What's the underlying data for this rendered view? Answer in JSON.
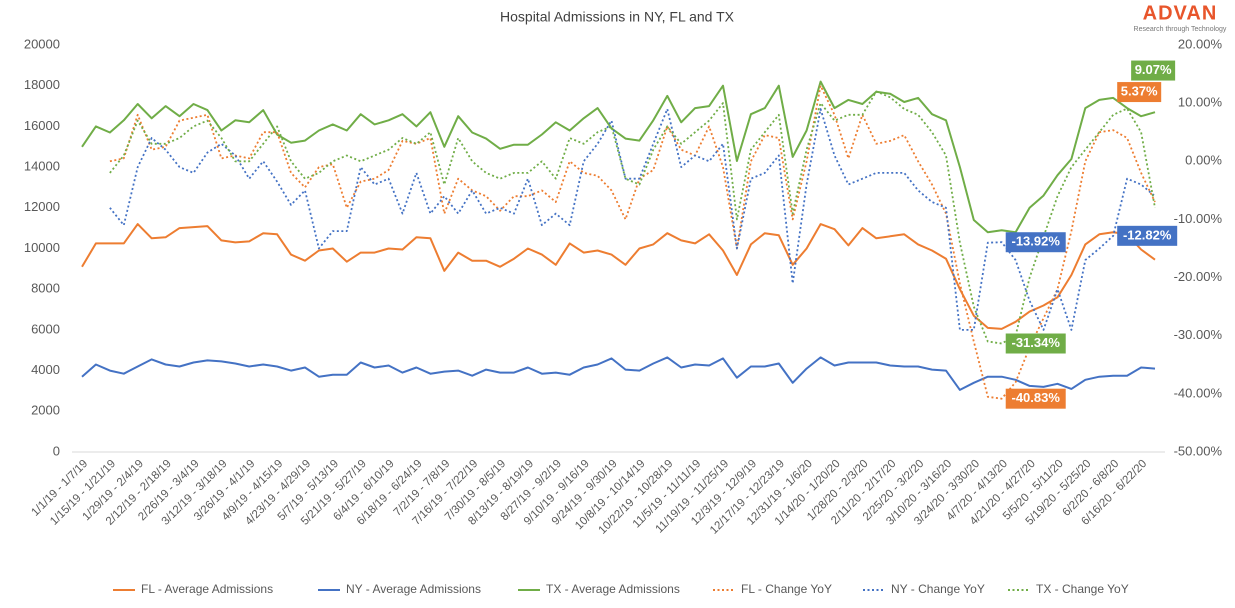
{
  "chart_data": {
    "type": "line",
    "title": "Hospital Admissions  in NY, FL and TX",
    "logo": {
      "name": "ADVAN",
      "tagline": "Research through Technology"
    },
    "categories": [
      "1/1/19 - 1/7/19",
      null,
      "1/15/19 - 1/21/19",
      null,
      "1/29/19 - 2/4/19",
      null,
      "2/12/19 - 2/18/19",
      null,
      "2/26/19 - 3/4/19",
      null,
      "3/12/19 - 3/18/19",
      null,
      "3/26/19 - 4/1/19",
      null,
      "4/9/19 - 4/15/19",
      null,
      "4/23/19 - 4/29/19",
      null,
      "5/7/19 - 5/13/19",
      null,
      "5/21/19 - 5/27/19",
      null,
      "6/4/19 - 6/10/19",
      null,
      "6/18/19 - 6/24/19",
      null,
      "7/2/19 - 7/8/19",
      null,
      "7/16/19 - 7/22/19",
      null,
      "7/30/19 - 8/5/19",
      null,
      "8/13/19 - 8/19/19",
      null,
      "8/27/19 - 9/2/19",
      null,
      "9/10/19 - 9/16/19",
      null,
      "9/24/19 - 9/30/19",
      null,
      "10/8/19 - 10/14/19",
      null,
      "10/22/19 - 10/28/19",
      null,
      "11/5/19 - 11/11/19",
      null,
      "11/19/19 - 11/25/19",
      null,
      "12/3/19 - 12/9/19",
      null,
      "12/17/19 - 12/23/19",
      null,
      "12/31/19 - 1/6/20",
      null,
      "1/14/20 - 1/20/20",
      null,
      "1/28/20 - 2/3/20",
      null,
      "2/11/20 - 2/17/20",
      null,
      "2/25/20 - 3/2/20",
      null,
      "3/10/20 - 3/16/20",
      null,
      "3/24/20 - 3/30/20",
      null,
      "4/7/20 - 4/13/20",
      null,
      "4/21/20 - 4/27/20",
      null,
      "5/5/20 - 5/11/20",
      null,
      "5/19/20 - 5/25/20",
      null,
      "6/2/20 - 6/8/20",
      null,
      "6/16/20 - 6/22/20",
      null
    ],
    "series": [
      {
        "name": "FL - Average Admissions",
        "color": "#ed7d31",
        "line_style": "solid",
        "values": [
          9100,
          10250,
          10250,
          10250,
          11200,
          10500,
          10550,
          11000,
          11050,
          11100,
          10400,
          10300,
          10350,
          10750,
          10700,
          9700,
          9400,
          9900,
          10000,
          9350,
          9800,
          9800,
          10000,
          9950,
          10550,
          10500,
          8900,
          9800,
          9400,
          9400,
          9100,
          9500,
          10000,
          9700,
          9200,
          10250,
          9800,
          9900,
          9700,
          9200,
          10000,
          10200,
          10750,
          10400,
          10250,
          10700,
          9900,
          8700,
          10200,
          10750,
          10650,
          9200,
          10000,
          11200,
          10950,
          10150,
          11000,
          10500,
          10600,
          10700,
          10200,
          9900,
          9500,
          8000,
          6700,
          6100,
          6050,
          6400,
          6900,
          7200,
          7600,
          8700,
          10200,
          10700,
          10800,
          10700,
          9950,
          9450
        ]
      },
      {
        "name": "NY - Average Admissions",
        "color": "#4472c4",
        "line_style": "solid",
        "values": [
          3700,
          4300,
          4000,
          3850,
          4200,
          4550,
          4300,
          4200,
          4400,
          4500,
          4450,
          4350,
          4200,
          4300,
          4200,
          4000,
          4150,
          3700,
          3800,
          3800,
          4400,
          4150,
          4250,
          3900,
          4150,
          3850,
          3950,
          4000,
          3750,
          4050,
          3900,
          3900,
          4150,
          3850,
          3900,
          3800,
          4150,
          4300,
          4600,
          4050,
          4000,
          4350,
          4650,
          4150,
          4300,
          4250,
          4600,
          3650,
          4200,
          4200,
          4350,
          3400,
          4100,
          4650,
          4250,
          4400,
          4400,
          4400,
          4250,
          4200,
          4200,
          4050,
          4000,
          3050,
          3400,
          3700,
          3700,
          3550,
          3250,
          3200,
          3350,
          3100,
          3550,
          3700,
          3750,
          3750,
          4150,
          4100
        ]
      },
      {
        "name": "TX - Average Admissions",
        "color": "#70ad47",
        "line_style": "solid",
        "values": [
          15000,
          16000,
          15700,
          16300,
          17100,
          16400,
          17000,
          16500,
          17100,
          16800,
          15800,
          16300,
          16200,
          16800,
          15600,
          15200,
          15300,
          15800,
          16100,
          15800,
          16600,
          16100,
          16300,
          16600,
          16000,
          16700,
          15000,
          16500,
          15700,
          15400,
          14900,
          15100,
          15100,
          15600,
          16200,
          15800,
          16400,
          16900,
          15900,
          15400,
          15300,
          16300,
          17500,
          16200,
          16900,
          17000,
          18000,
          14300,
          16600,
          16900,
          18000,
          14500,
          15800,
          18200,
          16900,
          17300,
          17100,
          17700,
          17600,
          17200,
          17400,
          16600,
          16300,
          14000,
          11400,
          10800,
          10900,
          10800,
          12000,
          12600,
          13600,
          14400,
          16900,
          17300,
          17400,
          16900,
          16500,
          16700
        ]
      },
      {
        "name": "FL - Change YoY",
        "color": "#ed7d31",
        "line_style": "dotted",
        "axis": "y2",
        "values": [
          null,
          null,
          0,
          0.5,
          8,
          2,
          2.5,
          7,
          7.5,
          8,
          0.5,
          1,
          0.5,
          5,
          5,
          -2,
          -4.5,
          -1,
          -0.5,
          -8,
          -3.5,
          -3,
          -1.5,
          3.5,
          3,
          4,
          -9,
          -3,
          -5,
          -6,
          -8.5,
          -6,
          -6,
          -5,
          -7,
          0,
          -2,
          -2.5,
          -5,
          -10,
          -3,
          -1.5,
          6,
          2,
          1,
          6,
          -1,
          -15,
          0,
          4.5,
          4,
          -10,
          0,
          13,
          8,
          0.5,
          8,
          3,
          3.5,
          4.5,
          0,
          -4,
          -9,
          -21,
          -31,
          -40.5,
          -40.83,
          -38,
          -32,
          -27,
          -22,
          -12,
          0,
          5,
          5.37,
          4,
          -2,
          -7
        ],
        "value_labels": [
          null,
          null,
          null,
          null,
          null,
          null,
          null,
          null,
          null,
          null,
          null,
          null,
          null,
          null,
          null,
          null,
          null,
          null,
          null,
          null,
          null,
          null,
          null,
          null,
          null,
          null,
          null,
          null,
          null,
          null,
          null,
          null,
          null,
          null,
          null,
          null,
          null,
          null,
          null,
          null,
          null,
          null,
          null,
          null,
          null,
          null,
          null,
          null,
          null,
          null,
          null,
          null,
          null,
          null,
          null,
          null,
          null,
          null,
          null,
          null,
          null,
          null,
          null,
          null,
          null,
          null,
          "-40.83%",
          null,
          null,
          null,
          null,
          null,
          null,
          null,
          "5.37%",
          null,
          null,
          null
        ]
      },
      {
        "name": "NY - Change YoY",
        "color": "#4472c4",
        "line_style": "dotted",
        "axis": "y2",
        "values": [
          null,
          null,
          -8,
          -11,
          -1,
          4,
          2,
          -1,
          -2,
          1.5,
          3,
          1,
          -3,
          0,
          -3.5,
          -7.5,
          -5,
          -15,
          -12,
          -12,
          -1,
          -4,
          -3,
          -9,
          -2,
          -9,
          -6,
          -9,
          -5,
          -9,
          -8,
          -9,
          -3,
          -11,
          -9,
          -11,
          0,
          3,
          7,
          -3,
          -3,
          3,
          9,
          -1,
          1,
          0,
          3,
          -15,
          -3,
          -2,
          1,
          -21,
          -4,
          9,
          1,
          -4,
          -3,
          -2,
          -2,
          -2,
          -5,
          -7,
          -8,
          -29,
          -29,
          -14,
          -13.92,
          -17,
          -24,
          -29,
          -22,
          -29,
          -17,
          -15,
          -12.82,
          -3,
          -4,
          -6
        ],
        "value_labels": [
          null,
          null,
          null,
          null,
          null,
          null,
          null,
          null,
          null,
          null,
          null,
          null,
          null,
          null,
          null,
          null,
          null,
          null,
          null,
          null,
          null,
          null,
          null,
          null,
          null,
          null,
          null,
          null,
          null,
          null,
          null,
          null,
          null,
          null,
          null,
          null,
          null,
          null,
          null,
          null,
          null,
          null,
          null,
          null,
          null,
          null,
          null,
          null,
          null,
          null,
          null,
          null,
          null,
          null,
          null,
          null,
          null,
          null,
          null,
          null,
          null,
          null,
          null,
          null,
          null,
          null,
          "-13.92%",
          null,
          null,
          null,
          null,
          null,
          null,
          null,
          "-12.82%",
          null,
          null,
          null
        ]
      },
      {
        "name": "TX - Change YoY",
        "color": "#70ad47",
        "line_style": "dotted",
        "axis": "y2",
        "values": [
          null,
          null,
          -2,
          1,
          7,
          3,
          3,
          4,
          6,
          7,
          4,
          0,
          0,
          3,
          6,
          0,
          -3,
          -2,
          0,
          1,
          0,
          1,
          2,
          4,
          3,
          5,
          -4,
          4,
          0,
          -2,
          -3,
          -2,
          -2,
          0,
          -3,
          4,
          3,
          5,
          6,
          -3,
          -4,
          2,
          6,
          3,
          5,
          7,
          10,
          -10,
          2,
          5,
          8,
          -9,
          2,
          10,
          7,
          8,
          8,
          12,
          11,
          9,
          8,
          5,
          1,
          -14,
          -25,
          -31,
          -31.34,
          -30,
          -20,
          -13,
          -6,
          -1,
          2,
          5,
          8,
          9.07,
          5,
          -8
        ],
        "value_labels": [
          null,
          null,
          null,
          null,
          null,
          null,
          null,
          null,
          null,
          null,
          null,
          null,
          null,
          null,
          null,
          null,
          null,
          null,
          null,
          null,
          null,
          null,
          null,
          null,
          null,
          null,
          null,
          null,
          null,
          null,
          null,
          null,
          null,
          null,
          null,
          null,
          null,
          null,
          null,
          null,
          null,
          null,
          null,
          null,
          null,
          null,
          null,
          null,
          null,
          null,
          null,
          null,
          null,
          null,
          null,
          null,
          null,
          null,
          null,
          null,
          null,
          null,
          null,
          null,
          null,
          null,
          "-31.34%",
          null,
          null,
          null,
          null,
          null,
          null,
          null,
          null,
          "9.07%",
          null,
          null
        ]
      }
    ],
    "ylim": [
      0,
      20000
    ],
    "yticks": [
      0,
      2000,
      4000,
      6000,
      8000,
      10000,
      12000,
      14000,
      16000,
      18000,
      20000
    ],
    "y2lim": [
      -50,
      20
    ],
    "y2ticks": [
      {
        "value": -50,
        "label": "-50.00%"
      },
      {
        "value": -40,
        "label": "-40.00%"
      },
      {
        "value": -30,
        "label": "-30.00%"
      },
      {
        "value": -20,
        "label": "-20.00%"
      },
      {
        "value": -10,
        "label": "-10.00%"
      },
      {
        "value": 0,
        "label": "0.00%"
      },
      {
        "value": 10,
        "label": "10.00%"
      },
      {
        "value": 20,
        "label": "20.00%"
      }
    ],
    "grid": false,
    "legend": "bottom"
  }
}
